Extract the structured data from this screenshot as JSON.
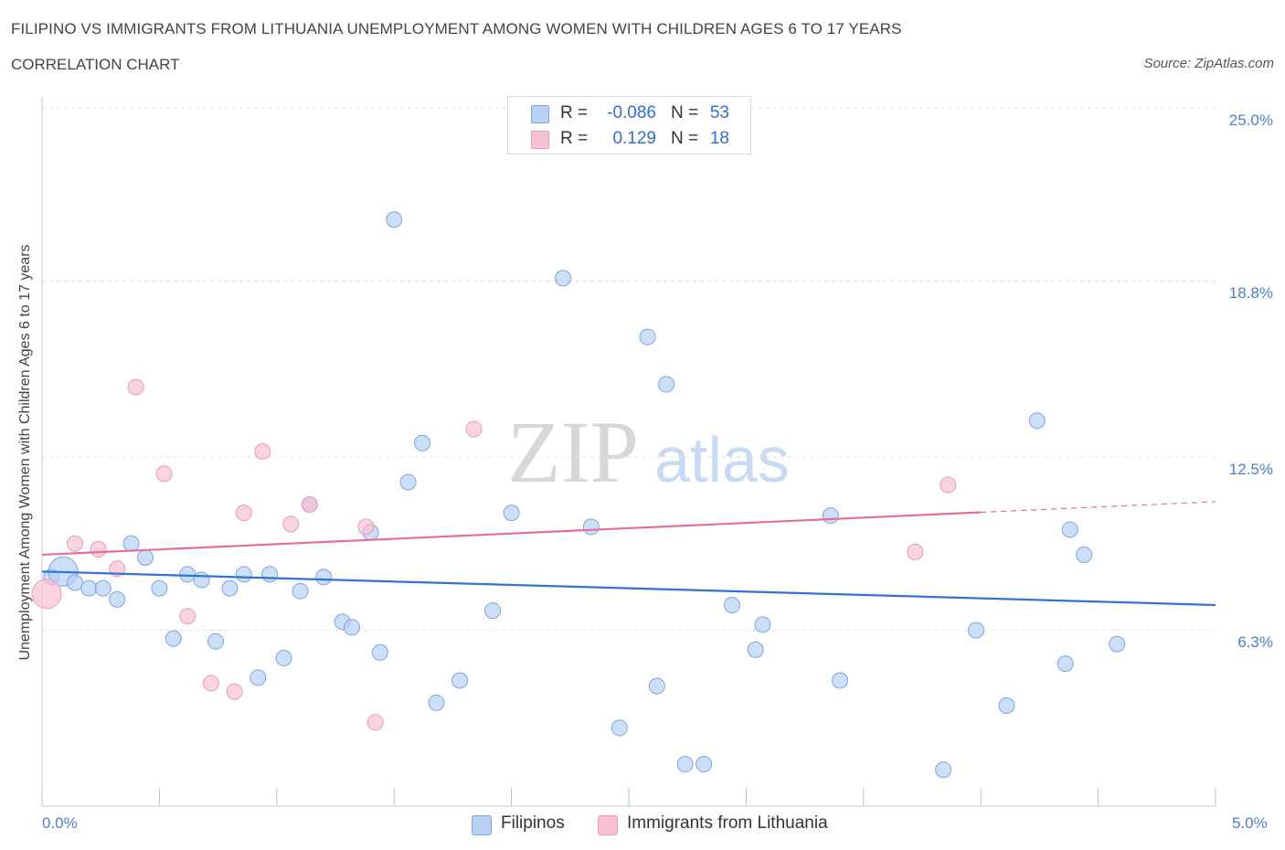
{
  "header": {
    "title": "FILIPINO VS IMMIGRANTS FROM LITHUANIA UNEMPLOYMENT AMONG WOMEN WITH CHILDREN AGES 6 TO 17 YEARS",
    "subtitle": "CORRELATION CHART",
    "source": "Source: ZipAtlas.com"
  },
  "watermark": {
    "zip": "ZIP",
    "atlas": "atlas"
  },
  "legend_top": {
    "rows": [
      {
        "r_label": "R =",
        "r_value": "-0.086",
        "n_label": "N =",
        "n_value": "53"
      },
      {
        "r_label": "R =",
        "r_value": "0.129",
        "n_label": "N =",
        "n_value": "18"
      }
    ]
  },
  "legend_bottom": {
    "items": [
      "Filipinos",
      "Immigrants from Lithuania"
    ]
  },
  "colors": {
    "filipinos_fill": "#b8d0f4",
    "filipinos_stroke": "#7aa5e6",
    "filipinos_line": "#2f74d0",
    "lithuania_fill": "#f7c1d2",
    "lithuania_stroke": "#ec9ab5",
    "lithuania_line": "#e56d96",
    "tick_text": "#4a7fd1",
    "grid": "#dcdcdc"
  },
  "chart_data": {
    "type": "scatter",
    "title": "FILIPINO VS IMMIGRANTS FROM LITHUANIA UNEMPLOYMENT AMONG WOMEN WITH CHILDREN AGES 6 TO 17 YEARS",
    "xlabel": "",
    "ylabel": "Unemployment Among Women with Children Ages 6 to 17 years",
    "xlim": [
      0,
      5
    ],
    "ylim": [
      0,
      25
    ],
    "x_tick_labels": [
      "0.0%",
      "5.0%"
    ],
    "y_ticks": [
      6.3,
      12.5,
      18.8,
      25.0
    ],
    "y_tick_labels": [
      "6.3%",
      "12.5%",
      "18.8%",
      "25.0%"
    ],
    "grid": "horizontal dashed",
    "legend_placement": "top-center and bottom",
    "series": [
      {
        "name": "Filipinos",
        "r": -0.086,
        "n": 53,
        "trend": {
          "x": [
            0,
            5
          ],
          "y": [
            8.4,
            7.2
          ]
        },
        "points": [
          [
            0.04,
            8.2
          ],
          [
            0.09,
            8.4
          ],
          [
            0.14,
            8.0
          ],
          [
            0.2,
            7.8
          ],
          [
            0.26,
            7.8
          ],
          [
            0.32,
            7.4
          ],
          [
            0.38,
            9.4
          ],
          [
            0.44,
            8.9
          ],
          [
            0.5,
            7.8
          ],
          [
            0.56,
            6.0
          ],
          [
            0.62,
            8.3
          ],
          [
            0.68,
            8.1
          ],
          [
            0.74,
            5.9
          ],
          [
            0.8,
            7.8
          ],
          [
            0.86,
            8.3
          ],
          [
            0.92,
            4.6
          ],
          [
            0.97,
            8.3
          ],
          [
            1.03,
            5.3
          ],
          [
            1.1,
            7.7
          ],
          [
            1.14,
            10.8
          ],
          [
            1.2,
            8.2
          ],
          [
            1.28,
            6.6
          ],
          [
            1.32,
            6.4
          ],
          [
            1.4,
            9.8
          ],
          [
            1.44,
            5.5
          ],
          [
            1.5,
            21.0
          ],
          [
            1.56,
            11.6
          ],
          [
            1.62,
            13.0
          ],
          [
            1.68,
            3.7
          ],
          [
            1.78,
            4.5
          ],
          [
            1.92,
            7.0
          ],
          [
            2.0,
            10.5
          ],
          [
            2.22,
            18.9
          ],
          [
            2.34,
            10.0
          ],
          [
            2.46,
            2.8
          ],
          [
            2.58,
            16.8
          ],
          [
            2.62,
            4.3
          ],
          [
            2.66,
            15.1
          ],
          [
            2.74,
            1.5
          ],
          [
            2.82,
            1.5
          ],
          [
            2.94,
            7.2
          ],
          [
            3.04,
            5.6
          ],
          [
            3.07,
            6.5
          ],
          [
            3.36,
            10.4
          ],
          [
            3.4,
            4.5
          ],
          [
            3.84,
            1.3
          ],
          [
            3.98,
            6.3
          ],
          [
            4.11,
            3.6
          ],
          [
            4.24,
            13.8
          ],
          [
            4.36,
            5.1
          ],
          [
            4.38,
            9.9
          ],
          [
            4.44,
            9.0
          ],
          [
            4.58,
            5.8
          ]
        ]
      },
      {
        "name": "Immigrants from Lithuania",
        "r": 0.129,
        "n": 18,
        "trend": {
          "x": [
            0,
            5
          ],
          "y": [
            9.0,
            10.9
          ],
          "solid_until_x": 4.0
        },
        "points": [
          [
            0.02,
            7.6
          ],
          [
            0.14,
            9.4
          ],
          [
            0.24,
            9.2
          ],
          [
            0.32,
            8.5
          ],
          [
            0.4,
            15.0
          ],
          [
            0.52,
            11.9
          ],
          [
            0.62,
            6.8
          ],
          [
            0.72,
            4.4
          ],
          [
            0.82,
            4.1
          ],
          [
            0.86,
            10.5
          ],
          [
            0.94,
            12.7
          ],
          [
            1.06,
            10.1
          ],
          [
            1.14,
            10.8
          ],
          [
            1.38,
            10.0
          ],
          [
            1.42,
            3.0
          ],
          [
            1.84,
            13.5
          ],
          [
            3.72,
            9.1
          ],
          [
            3.86,
            11.5
          ]
        ]
      }
    ]
  }
}
